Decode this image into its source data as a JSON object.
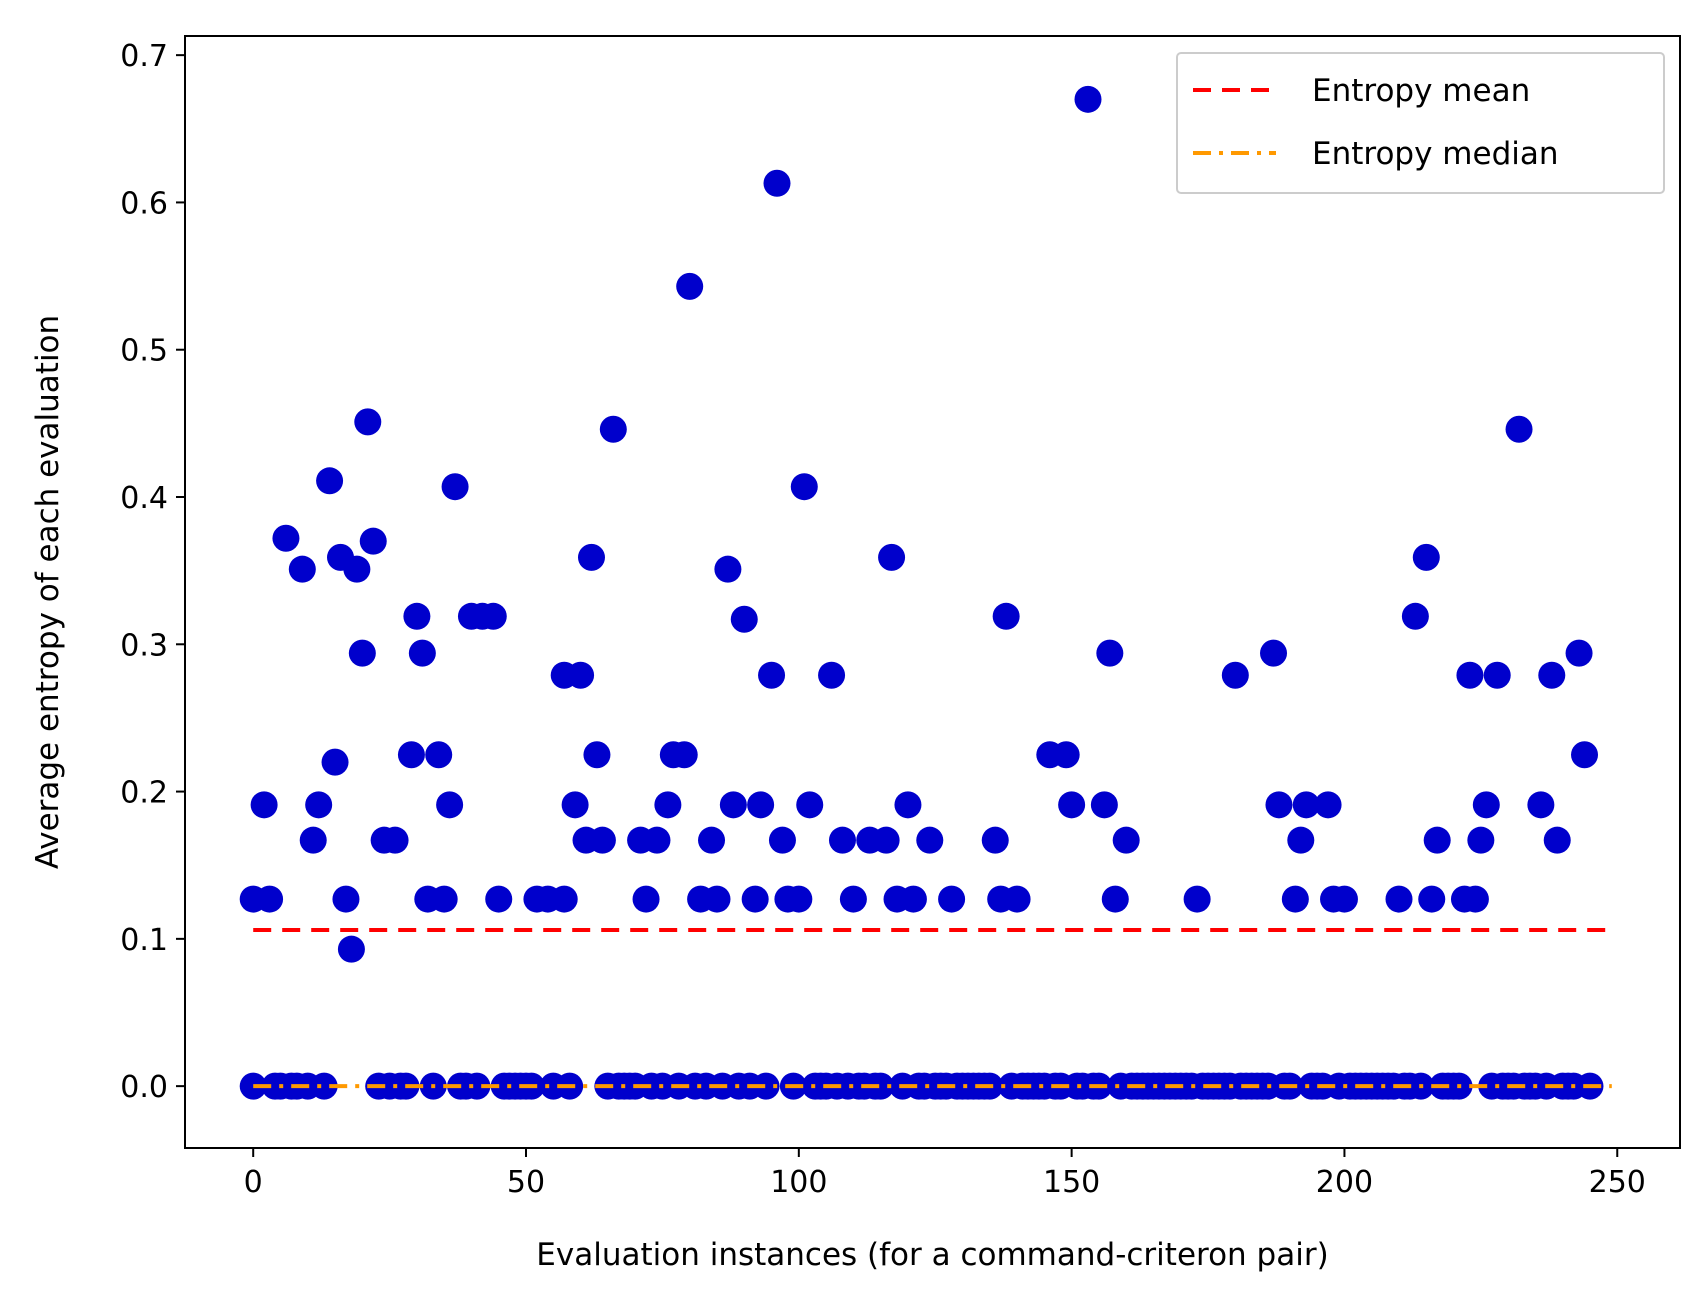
{
  "chart_data": {
    "type": "scatter",
    "xlabel": "Evaluation instances (for a command-criteron pair)",
    "ylabel": "Average entropy of each evaluation",
    "xlim": [
      -12.5,
      261.5
    ],
    "ylim": [
      -0.042,
      0.713
    ],
    "xticks": [
      0,
      50,
      100,
      150,
      200,
      250
    ],
    "yticks": [
      0.0,
      0.1,
      0.2,
      0.3,
      0.4,
      0.5,
      0.6,
      0.7
    ],
    "xtick_labels": [
      "0",
      "50",
      "100",
      "150",
      "200",
      "250"
    ],
    "ytick_labels": [
      "0.0",
      "0.1",
      "0.2",
      "0.3",
      "0.4",
      "0.5",
      "0.6",
      "0.7"
    ],
    "grid": false,
    "legend_position": "top-right",
    "colors": {
      "points": "#0000cc",
      "mean": "#ff0000",
      "median": "#ff9900"
    },
    "lines": [
      {
        "name": "Entropy mean",
        "style": "dashed",
        "color": "#ff0000",
        "y": 0.106,
        "x_range": [
          0,
          249
        ]
      },
      {
        "name": "Entropy median",
        "style": "dashdot",
        "color": "#ff9900",
        "y": 0.0,
        "x_range": [
          0,
          249
        ]
      }
    ],
    "series": [
      {
        "points": [
          [
            0,
            0.127
          ],
          [
            2,
            0.191
          ],
          [
            3,
            0.127
          ],
          [
            6,
            0.372
          ],
          [
            9,
            0.351
          ],
          [
            11,
            0.167
          ],
          [
            12,
            0.191
          ],
          [
            14,
            0.411
          ],
          [
            15,
            0.22
          ],
          [
            16,
            0.359
          ],
          [
            17,
            0.127
          ],
          [
            18,
            0.093
          ],
          [
            19,
            0.351
          ],
          [
            20,
            0.294
          ],
          [
            21,
            0.451
          ],
          [
            22,
            0.37
          ],
          [
            24,
            0.167
          ],
          [
            26,
            0.167
          ],
          [
            29,
            0.225
          ],
          [
            30,
            0.319
          ],
          [
            31,
            0.294
          ],
          [
            32,
            0.127
          ],
          [
            34,
            0.225
          ],
          [
            35,
            0.127
          ],
          [
            36,
            0.191
          ],
          [
            37,
            0.407
          ],
          [
            40,
            0.319
          ],
          [
            42,
            0.319
          ],
          [
            44,
            0.319
          ],
          [
            45,
            0.127
          ],
          [
            52,
            0.127
          ],
          [
            54,
            0.127
          ],
          [
            57,
            0.127
          ],
          [
            57,
            0.279
          ],
          [
            59,
            0.191
          ],
          [
            60,
            0.279
          ],
          [
            61,
            0.167
          ],
          [
            62,
            0.359
          ],
          [
            63,
            0.225
          ],
          [
            64,
            0.167
          ],
          [
            66,
            0.446
          ],
          [
            71,
            0.167
          ],
          [
            72,
            0.127
          ],
          [
            74,
            0.167
          ],
          [
            76,
            0.191
          ],
          [
            77,
            0.225
          ],
          [
            79,
            0.225
          ],
          [
            80,
            0.543
          ],
          [
            82,
            0.127
          ],
          [
            84,
            0.167
          ],
          [
            85,
            0.127
          ],
          [
            87,
            0.351
          ],
          [
            88,
            0.191
          ],
          [
            90,
            0.317
          ],
          [
            92,
            0.127
          ],
          [
            93,
            0.191
          ],
          [
            95,
            0.279
          ],
          [
            96,
            0.613
          ],
          [
            97,
            0.167
          ],
          [
            98,
            0.127
          ],
          [
            100,
            0.127
          ],
          [
            101,
            0.407
          ],
          [
            102,
            0.191
          ],
          [
            106,
            0.279
          ],
          [
            108,
            0.167
          ],
          [
            110,
            0.127
          ],
          [
            113,
            0.167
          ],
          [
            116,
            0.167
          ],
          [
            117,
            0.359
          ],
          [
            118,
            0.127
          ],
          [
            120,
            0.191
          ],
          [
            121,
            0.127
          ],
          [
            124,
            0.167
          ],
          [
            128,
            0.127
          ],
          [
            136,
            0.167
          ],
          [
            137,
            0.127
          ],
          [
            138,
            0.319
          ],
          [
            140,
            0.127
          ],
          [
            146,
            0.225
          ],
          [
            149,
            0.225
          ],
          [
            150,
            0.191
          ],
          [
            153,
            0.67
          ],
          [
            156,
            0.191
          ],
          [
            157,
            0.294
          ],
          [
            158,
            0.127
          ],
          [
            160,
            0.167
          ],
          [
            173,
            0.127
          ],
          [
            180,
            0.279
          ],
          [
            187,
            0.294
          ],
          [
            188,
            0.191
          ],
          [
            191,
            0.127
          ],
          [
            192,
            0.167
          ],
          [
            193,
            0.191
          ],
          [
            197,
            0.191
          ],
          [
            198,
            0.127
          ],
          [
            200,
            0.127
          ],
          [
            210,
            0.127
          ],
          [
            213,
            0.319
          ],
          [
            215,
            0.359
          ],
          [
            216,
            0.127
          ],
          [
            217,
            0.167
          ],
          [
            222,
            0.127
          ],
          [
            223,
            0.279
          ],
          [
            224,
            0.127
          ],
          [
            225,
            0.167
          ],
          [
            226,
            0.191
          ],
          [
            228,
            0.279
          ],
          [
            232,
            0.446
          ],
          [
            236,
            0.191
          ],
          [
            238,
            0.279
          ],
          [
            239,
            0.167
          ],
          [
            243,
            0.294
          ],
          [
            244,
            0.225
          ],
          [
            0,
            0
          ],
          [
            4,
            0
          ],
          [
            5,
            0
          ],
          [
            7,
            0
          ],
          [
            8,
            0
          ],
          [
            10,
            0
          ],
          [
            13,
            0
          ],
          [
            23,
            0
          ],
          [
            25,
            0
          ],
          [
            27,
            0
          ],
          [
            28,
            0
          ],
          [
            33,
            0
          ],
          [
            38,
            0
          ],
          [
            39,
            0
          ],
          [
            41,
            0
          ],
          [
            46,
            0
          ],
          [
            47,
            0
          ],
          [
            48,
            0
          ],
          [
            49,
            0
          ],
          [
            50,
            0
          ],
          [
            51,
            0
          ],
          [
            55,
            0
          ],
          [
            58,
            0
          ],
          [
            65,
            0
          ],
          [
            67,
            0
          ],
          [
            68,
            0
          ],
          [
            69,
            0
          ],
          [
            70,
            0
          ],
          [
            73,
            0
          ],
          [
            75,
            0
          ],
          [
            78,
            0
          ],
          [
            81,
            0
          ],
          [
            83,
            0
          ],
          [
            86,
            0
          ],
          [
            89,
            0
          ],
          [
            91,
            0
          ],
          [
            94,
            0
          ],
          [
            99,
            0
          ],
          [
            103,
            0
          ],
          [
            104,
            0
          ],
          [
            105,
            0
          ],
          [
            107,
            0
          ],
          [
            109,
            0
          ],
          [
            111,
            0
          ],
          [
            112,
            0
          ],
          [
            114,
            0
          ],
          [
            115,
            0
          ],
          [
            119,
            0
          ],
          [
            122,
            0
          ],
          [
            123,
            0
          ],
          [
            125,
            0
          ],
          [
            126,
            0
          ],
          [
            127,
            0
          ],
          [
            129,
            0
          ],
          [
            130,
            0
          ],
          [
            131,
            0
          ],
          [
            132,
            0
          ],
          [
            133,
            0
          ],
          [
            134,
            0
          ],
          [
            135,
            0
          ],
          [
            139,
            0
          ],
          [
            141,
            0
          ],
          [
            142,
            0
          ],
          [
            143,
            0
          ],
          [
            144,
            0
          ],
          [
            145,
            0
          ],
          [
            147,
            0
          ],
          [
            148,
            0
          ],
          [
            151,
            0
          ],
          [
            152,
            0
          ],
          [
            154,
            0
          ],
          [
            155,
            0
          ],
          [
            159,
            0
          ],
          [
            161,
            0
          ],
          [
            162,
            0
          ],
          [
            163,
            0
          ],
          [
            164,
            0
          ],
          [
            165,
            0
          ],
          [
            166,
            0
          ],
          [
            167,
            0
          ],
          [
            168,
            0
          ],
          [
            169,
            0
          ],
          [
            170,
            0
          ],
          [
            171,
            0
          ],
          [
            172,
            0
          ],
          [
            174,
            0
          ],
          [
            175,
            0
          ],
          [
            176,
            0
          ],
          [
            177,
            0
          ],
          [
            178,
            0
          ],
          [
            179,
            0
          ],
          [
            181,
            0
          ],
          [
            182,
            0
          ],
          [
            183,
            0
          ],
          [
            184,
            0
          ],
          [
            185,
            0
          ],
          [
            186,
            0
          ],
          [
            189,
            0
          ],
          [
            190,
            0
          ],
          [
            194,
            0
          ],
          [
            195,
            0
          ],
          [
            196,
            0
          ],
          [
            199,
            0
          ],
          [
            201,
            0
          ],
          [
            202,
            0
          ],
          [
            203,
            0
          ],
          [
            204,
            0
          ],
          [
            205,
            0
          ],
          [
            206,
            0
          ],
          [
            207,
            0
          ],
          [
            208,
            0
          ],
          [
            209,
            0
          ],
          [
            211,
            0
          ],
          [
            212,
            0
          ],
          [
            214,
            0
          ],
          [
            218,
            0
          ],
          [
            219,
            0
          ],
          [
            220,
            0
          ],
          [
            221,
            0
          ],
          [
            227,
            0
          ],
          [
            229,
            0
          ],
          [
            230,
            0
          ],
          [
            231,
            0
          ],
          [
            233,
            0
          ],
          [
            234,
            0
          ],
          [
            235,
            0
          ],
          [
            237,
            0
          ],
          [
            240,
            0
          ],
          [
            241,
            0
          ],
          [
            242,
            0
          ],
          [
            245,
            0
          ]
        ]
      }
    ]
  }
}
